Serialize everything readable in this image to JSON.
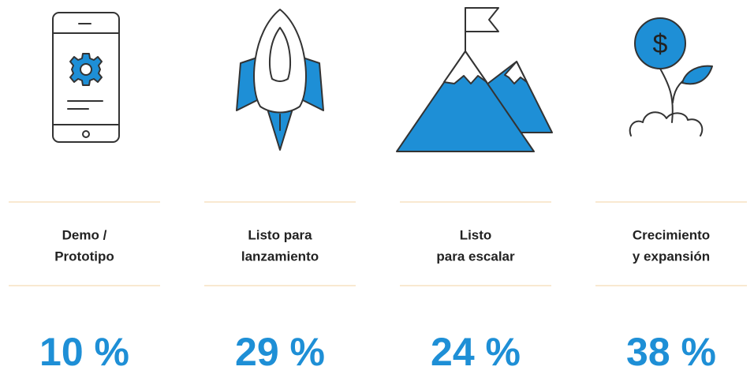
{
  "items": [
    {
      "label": [
        "Demo /",
        "Prototipo"
      ],
      "value": "10 %"
    },
    {
      "label": [
        "Listo para",
        "lanzamiento"
      ],
      "value": "29 %"
    },
    {
      "label": [
        "Listo",
        "para escalar"
      ],
      "value": "24 %"
    },
    {
      "label": [
        "Crecimiento",
        "y expansión"
      ],
      "value": "38 %"
    }
  ]
}
